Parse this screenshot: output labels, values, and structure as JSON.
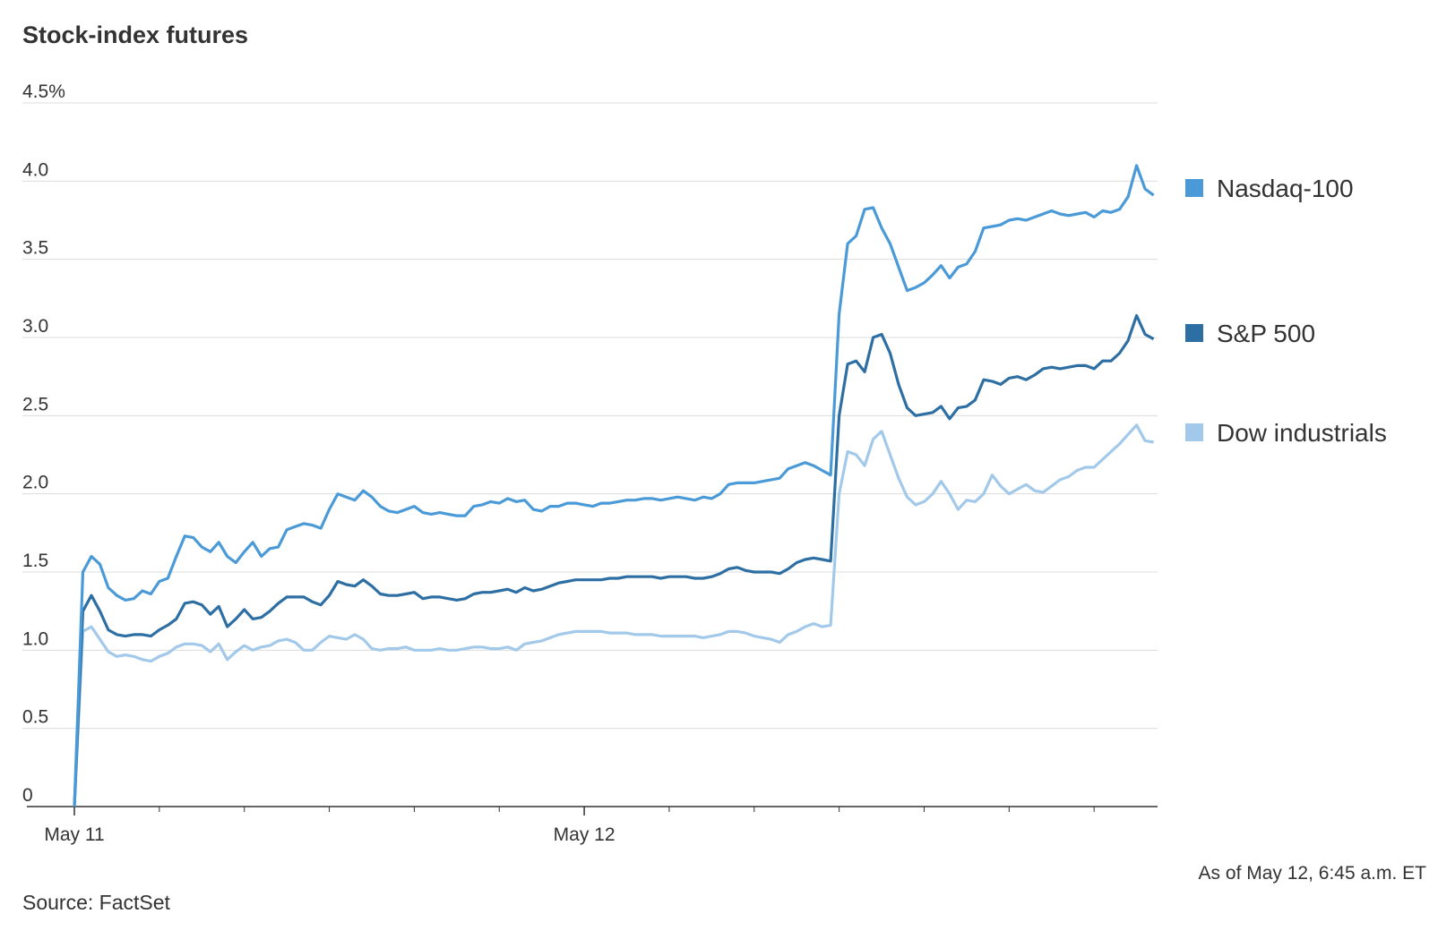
{
  "chart_data": {
    "type": "line",
    "title": "Stock-index futures",
    "note": "As of May 12, 6:45 a.m. ET",
    "source": "Source: FactSet",
    "categories": [
      "May 11",
      null,
      null,
      null,
      null,
      null,
      null,
      null,
      null,
      null,
      null,
      null,
      null,
      null,
      null,
      null,
      null,
      null,
      null,
      null,
      null,
      null,
      null,
      null,
      null,
      null,
      null,
      null,
      null,
      null,
      null,
      null,
      null,
      null,
      null,
      null,
      null,
      null,
      null,
      null,
      null,
      null,
      null,
      null,
      null,
      null,
      null,
      null,
      null,
      null,
      null,
      null,
      null,
      null,
      null,
      null,
      null,
      null,
      null,
      null,
      "May 12",
      null,
      null,
      null,
      null,
      null,
      null,
      null,
      null,
      null,
      null,
      null,
      null,
      null,
      null,
      null,
      null,
      null,
      null,
      null,
      null,
      null,
      null,
      null,
      null,
      null,
      null,
      null,
      null,
      null,
      null,
      null,
      null,
      null,
      null,
      null,
      null,
      null,
      null,
      null,
      null,
      null,
      null,
      null,
      null,
      null,
      null,
      null,
      null,
      null,
      null,
      null,
      null,
      null,
      null,
      null,
      null,
      null,
      null,
      null,
      null,
      null,
      null,
      null,
      null,
      null,
      null,
      null
    ],
    "series": [
      {
        "name": "Nasdaq-100",
        "color": "#4a9ad8",
        "values": [
          0,
          1.5,
          1.6,
          1.55,
          1.4,
          1.35,
          1.32,
          1.33,
          1.38,
          1.36,
          1.44,
          1.46,
          1.6,
          1.73,
          1.72,
          1.66,
          1.63,
          1.69,
          1.6,
          1.56,
          1.63,
          1.69,
          1.6,
          1.65,
          1.66,
          1.77,
          1.79,
          1.81,
          1.8,
          1.78,
          1.9,
          2.0,
          1.98,
          1.96,
          2.02,
          1.98,
          1.92,
          1.89,
          1.88,
          1.9,
          1.92,
          1.88,
          1.87,
          1.88,
          1.87,
          1.86,
          1.86,
          1.92,
          1.93,
          1.95,
          1.94,
          1.97,
          1.95,
          1.96,
          1.9,
          1.89,
          1.92,
          1.92,
          1.94,
          1.94,
          1.93,
          1.92,
          1.94,
          1.94,
          1.95,
          1.96,
          1.96,
          1.97,
          1.97,
          1.96,
          1.97,
          1.98,
          1.97,
          1.96,
          1.98,
          1.97,
          2.0,
          2.06,
          2.07,
          2.07,
          2.07,
          2.08,
          2.09,
          2.1,
          2.16,
          2.18,
          2.2,
          2.18,
          2.15,
          2.12,
          3.15,
          3.6,
          3.65,
          3.82,
          3.83,
          3.7,
          3.6,
          3.45,
          3.3,
          3.32,
          3.35,
          3.4,
          3.46,
          3.38,
          3.45,
          3.47,
          3.55,
          3.7,
          3.71,
          3.72,
          3.75,
          3.76,
          3.75,
          3.77,
          3.79,
          3.81,
          3.79,
          3.78,
          3.79,
          3.8,
          3.77,
          3.81,
          3.8,
          3.82,
          3.9,
          4.1,
          3.95,
          3.91
        ]
      },
      {
        "name": "S&P 500",
        "color": "#2e6fa3",
        "values": [
          0,
          1.25,
          1.35,
          1.25,
          1.13,
          1.1,
          1.09,
          1.1,
          1.1,
          1.09,
          1.13,
          1.16,
          1.2,
          1.3,
          1.31,
          1.29,
          1.23,
          1.28,
          1.15,
          1.2,
          1.26,
          1.2,
          1.21,
          1.25,
          1.3,
          1.34,
          1.34,
          1.34,
          1.31,
          1.29,
          1.35,
          1.44,
          1.42,
          1.41,
          1.45,
          1.41,
          1.36,
          1.35,
          1.35,
          1.36,
          1.37,
          1.33,
          1.34,
          1.34,
          1.33,
          1.32,
          1.33,
          1.36,
          1.37,
          1.37,
          1.38,
          1.39,
          1.37,
          1.4,
          1.38,
          1.39,
          1.41,
          1.43,
          1.44,
          1.45,
          1.45,
          1.45,
          1.45,
          1.46,
          1.46,
          1.47,
          1.47,
          1.47,
          1.47,
          1.46,
          1.47,
          1.47,
          1.47,
          1.46,
          1.46,
          1.47,
          1.49,
          1.52,
          1.53,
          1.51,
          1.5,
          1.5,
          1.5,
          1.49,
          1.52,
          1.56,
          1.58,
          1.59,
          1.58,
          1.57,
          2.5,
          2.83,
          2.85,
          2.78,
          3.0,
          3.02,
          2.9,
          2.7,
          2.55,
          2.5,
          2.51,
          2.52,
          2.56,
          2.48,
          2.55,
          2.56,
          2.6,
          2.73,
          2.72,
          2.7,
          2.74,
          2.75,
          2.73,
          2.76,
          2.8,
          2.81,
          2.8,
          2.81,
          2.82,
          2.82,
          2.8,
          2.85,
          2.85,
          2.9,
          2.98,
          3.14,
          3.02,
          2.99
        ]
      },
      {
        "name": "Dow industrials",
        "color": "#a3c9ea",
        "values": [
          0,
          1.12,
          1.15,
          1.07,
          0.99,
          0.96,
          0.97,
          0.96,
          0.94,
          0.93,
          0.96,
          0.98,
          1.02,
          1.04,
          1.04,
          1.03,
          0.99,
          1.04,
          0.94,
          0.99,
          1.03,
          1.0,
          1.02,
          1.03,
          1.06,
          1.07,
          1.05,
          1.0,
          1.0,
          1.05,
          1.09,
          1.08,
          1.07,
          1.1,
          1.07,
          1.01,
          1.0,
          1.01,
          1.01,
          1.02,
          1.0,
          1.0,
          1.0,
          1.01,
          1.0,
          1.0,
          1.01,
          1.02,
          1.02,
          1.01,
          1.01,
          1.02,
          1.0,
          1.04,
          1.05,
          1.06,
          1.08,
          1.1,
          1.11,
          1.12,
          1.12,
          1.12,
          1.12,
          1.11,
          1.11,
          1.11,
          1.1,
          1.1,
          1.1,
          1.09,
          1.09,
          1.09,
          1.09,
          1.09,
          1.08,
          1.09,
          1.1,
          1.12,
          1.12,
          1.11,
          1.09,
          1.08,
          1.07,
          1.05,
          1.1,
          1.12,
          1.15,
          1.17,
          1.15,
          1.16,
          2.0,
          2.27,
          2.25,
          2.18,
          2.35,
          2.4,
          2.25,
          2.1,
          1.98,
          1.93,
          1.95,
          2.0,
          2.08,
          2.0,
          1.9,
          1.96,
          1.95,
          2.0,
          2.12,
          2.05,
          2.0,
          2.03,
          2.06,
          2.02,
          2.01,
          2.05,
          2.09,
          2.11,
          2.15,
          2.17,
          2.17,
          2.22,
          2.27,
          2.32,
          2.38,
          2.44,
          2.34,
          2.33
        ]
      }
    ],
    "ylim": [
      0,
      4.5
    ],
    "yticks": [
      0,
      0.5,
      {
        "value": 1,
        "label": "1.0"
      },
      1.5,
      {
        "value": 2,
        "label": "2.0"
      },
      2.5,
      {
        "value": 3,
        "label": "3.0"
      },
      3.5,
      {
        "value": 4,
        "label": "4.0"
      },
      {
        "value": 4.5,
        "label": "4.5%"
      }
    ],
    "grid": true,
    "legend": "right"
  }
}
